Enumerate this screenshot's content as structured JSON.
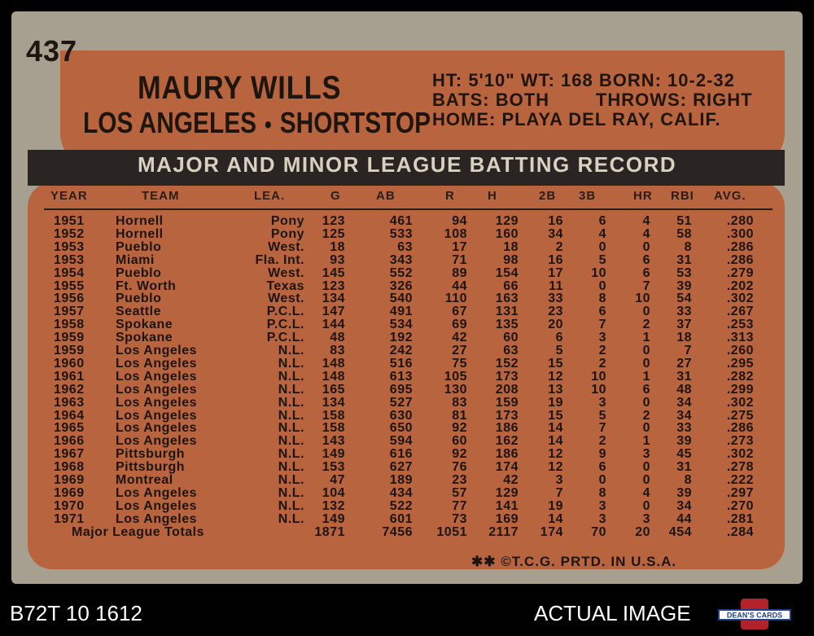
{
  "card": {
    "number": "437",
    "player_name": "MAURY WILLS",
    "team": "LOS ANGELES",
    "separator": "•",
    "position": "SHORTSTOP",
    "info_line1": "HT: 5'10\" WT: 168 BORN: 10-2-32",
    "info_line2": "BATS: BOTH        THROWS: RIGHT",
    "info_line3": "HOME: PLAYA DEL RAY, CALIF.",
    "record_title": "MAJOR AND MINOR LEAGUE BATTING RECORD",
    "footer": "✱✱ ©T.C.G. PRTD. IN U.S.A."
  },
  "table": {
    "columns": [
      "YEAR",
      "TEAM",
      "LEA.",
      "G",
      "AB",
      "R",
      "H",
      "2B",
      "3B",
      "HR",
      "RBI",
      "AVG."
    ],
    "rows": [
      [
        "1951",
        "Hornell",
        "Pony",
        "123",
        "461",
        "94",
        "129",
        "16",
        "6",
        "4",
        "51",
        ".280"
      ],
      [
        "1952",
        "Hornell",
        "Pony",
        "125",
        "533",
        "108",
        "160",
        "34",
        "4",
        "4",
        "58",
        ".300"
      ],
      [
        "1953",
        "Pueblo",
        "West.",
        "18",
        "63",
        "17",
        "18",
        "2",
        "0",
        "0",
        "8",
        ".286"
      ],
      [
        "1953",
        "Miami",
        "Fla. Int.",
        "93",
        "343",
        "71",
        "98",
        "16",
        "5",
        "6",
        "31",
        ".286"
      ],
      [
        "1954",
        "Pueblo",
        "West.",
        "145",
        "552",
        "89",
        "154",
        "17",
        "10",
        "6",
        "53",
        ".279"
      ],
      [
        "1955",
        "Ft. Worth",
        "Texas",
        "123",
        "326",
        "44",
        "66",
        "11",
        "0",
        "7",
        "39",
        ".202"
      ],
      [
        "1956",
        "Pueblo",
        "West.",
        "134",
        "540",
        "110",
        "163",
        "33",
        "8",
        "10",
        "54",
        ".302"
      ],
      [
        "1957",
        "Seattle",
        "P.C.L.",
        "147",
        "491",
        "67",
        "131",
        "23",
        "6",
        "0",
        "33",
        ".267"
      ],
      [
        "1958",
        "Spokane",
        "P.C.L.",
        "144",
        "534",
        "69",
        "135",
        "20",
        "7",
        "2",
        "37",
        ".253"
      ],
      [
        "1959",
        "Spokane",
        "P.C.L.",
        "48",
        "192",
        "42",
        "60",
        "6",
        "3",
        "1",
        "18",
        ".313"
      ],
      [
        "1959",
        "Los Angeles",
        "N.L.",
        "83",
        "242",
        "27",
        "63",
        "5",
        "2",
        "0",
        "7",
        ".260"
      ],
      [
        "1960",
        "Los Angeles",
        "N.L.",
        "148",
        "516",
        "75",
        "152",
        "15",
        "2",
        "0",
        "27",
        ".295"
      ],
      [
        "1961",
        "Los Angeles",
        "N.L.",
        "148",
        "613",
        "105",
        "173",
        "12",
        "10",
        "1",
        "31",
        ".282"
      ],
      [
        "1962",
        "Los Angeles",
        "N.L.",
        "165",
        "695",
        "130",
        "208",
        "13",
        "10",
        "6",
        "48",
        ".299"
      ],
      [
        "1963",
        "Los Angeles",
        "N.L.",
        "134",
        "527",
        "83",
        "159",
        "19",
        "3",
        "0",
        "34",
        ".302"
      ],
      [
        "1964",
        "Los Angeles",
        "N.L.",
        "158",
        "630",
        "81",
        "173",
        "15",
        "5",
        "2",
        "34",
        ".275"
      ],
      [
        "1965",
        "Los Angeles",
        "N.L.",
        "158",
        "650",
        "92",
        "186",
        "14",
        "7",
        "0",
        "33",
        ".286"
      ],
      [
        "1966",
        "Los Angeles",
        "N.L.",
        "143",
        "594",
        "60",
        "162",
        "14",
        "2",
        "1",
        "39",
        ".273"
      ],
      [
        "1967",
        "Pittsburgh",
        "N.L.",
        "149",
        "616",
        "92",
        "186",
        "12",
        "9",
        "3",
        "45",
        ".302"
      ],
      [
        "1968",
        "Pittsburgh",
        "N.L.",
        "153",
        "627",
        "76",
        "174",
        "12",
        "6",
        "0",
        "31",
        ".278"
      ],
      [
        "1969",
        "Montreal",
        "N.L.",
        "47",
        "189",
        "23",
        "42",
        "3",
        "0",
        "0",
        "8",
        ".222"
      ],
      [
        "1969",
        "Los Angeles",
        "N.L.",
        "104",
        "434",
        "57",
        "129",
        "7",
        "8",
        "4",
        "39",
        ".297"
      ],
      [
        "1970",
        "Los Angeles",
        "N.L.",
        "132",
        "522",
        "77",
        "141",
        "19",
        "3",
        "0",
        "34",
        ".270"
      ],
      [
        "1971",
        "Los Angeles",
        "N.L.",
        "149",
        "601",
        "73",
        "169",
        "14",
        "3",
        "3",
        "44",
        ".281"
      ]
    ],
    "totals_label": "Major League Totals",
    "totals": [
      "1871",
      "7456",
      "1051",
      "2117",
      "174",
      "70",
      "20",
      "454",
      ".284"
    ]
  },
  "overlay": {
    "code": "B72T 10 1612",
    "actual_image": "ACTUAL IMAGE",
    "logo_text": "DEAN'S CARDS"
  },
  "colors": {
    "card_gray": "#a7a090",
    "orange": "#b8653f",
    "header_dark": "#2a2422",
    "ink": "#1e140f"
  }
}
